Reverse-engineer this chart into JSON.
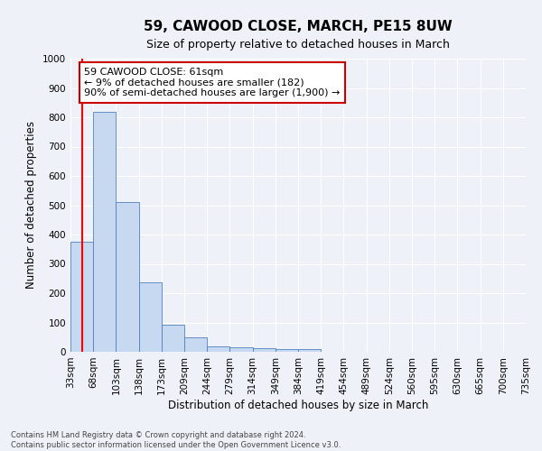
{
  "title": "59, CAWOOD CLOSE, MARCH, PE15 8UW",
  "subtitle": "Size of property relative to detached houses in March",
  "xlabel": "Distribution of detached houses by size in March",
  "ylabel": "Number of detached properties",
  "footnote1": "Contains HM Land Registry data © Crown copyright and database right 2024.",
  "footnote2": "Contains public sector information licensed under the Open Government Licence v3.0.",
  "bin_labels": [
    "33sqm",
    "68sqm",
    "103sqm",
    "138sqm",
    "173sqm",
    "209sqm",
    "244sqm",
    "279sqm",
    "314sqm",
    "349sqm",
    "384sqm",
    "419sqm",
    "454sqm",
    "489sqm",
    "524sqm",
    "560sqm",
    "595sqm",
    "630sqm",
    "665sqm",
    "700sqm",
    "735sqm"
  ],
  "bar_heights": [
    375,
    820,
    510,
    236,
    92,
    50,
    20,
    16,
    11,
    10,
    10,
    0,
    0,
    0,
    0,
    0,
    0,
    0,
    0,
    0
  ],
  "bar_color": "#c6d9f0",
  "bar_edge_color": "#5080c0",
  "red_line_x": 0.5,
  "annotation_text": "59 CAWOOD CLOSE: 61sqm\n← 9% of detached houses are smaller (182)\n90% of semi-detached houses are larger (1,900) →",
  "annotation_box_color": "#ffffff",
  "annotation_box_edge": "#cc0000",
  "ylim": [
    0,
    1000
  ],
  "yticks": [
    0,
    100,
    200,
    300,
    400,
    500,
    600,
    700,
    800,
    900,
    1000
  ],
  "background_color": "#eef2f8",
  "grid_color": "#ffffff",
  "title_fontsize": 11,
  "subtitle_fontsize": 9,
  "axis_label_fontsize": 8.5,
  "tick_fontsize": 7.5,
  "footnote_fontsize": 6.0,
  "annotation_fontsize": 8.0
}
